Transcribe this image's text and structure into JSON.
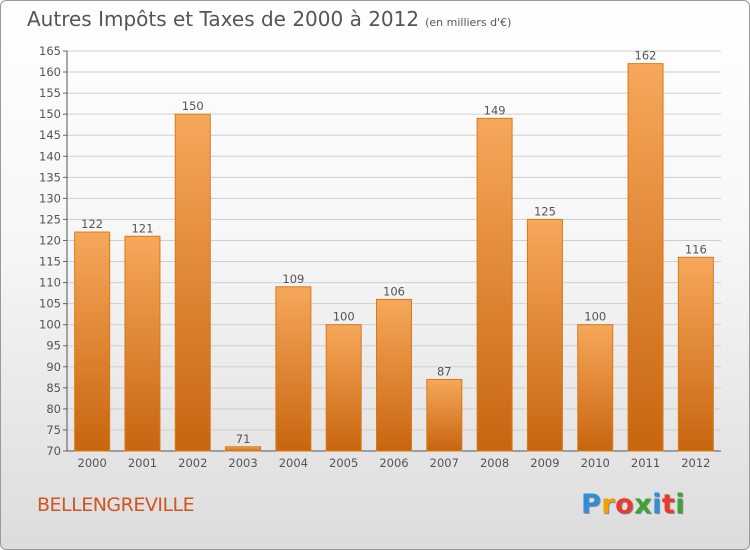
{
  "title": "Autres Impôts et Taxes de 2000 à 2012",
  "subtitle": "(en milliers d'€)",
  "commune": "BELLENGREVILLE",
  "logo": {
    "letters": [
      "P",
      "r",
      "o",
      "x",
      "i",
      "t",
      "i"
    ],
    "colors": [
      "#2e8fd6",
      "#f0a000",
      "#e83a2d",
      "#3aa534",
      "#2e8fd6",
      "#e83a2d",
      "#3aa534"
    ]
  },
  "colors": {
    "bar_top": "#f6a85a",
    "bar_bottom": "#c8650f",
    "bar_border": "#d97a1a",
    "text": "#555555",
    "commune": "#d0551f"
  },
  "chart_data": {
    "type": "bar",
    "categories": [
      "2000",
      "2001",
      "2002",
      "2003",
      "2004",
      "2005",
      "2006",
      "2007",
      "2008",
      "2009",
      "2010",
      "2011",
      "2012"
    ],
    "values": [
      122,
      121,
      150,
      71,
      109,
      100,
      106,
      87,
      149,
      125,
      100,
      162,
      116
    ],
    "ylim": [
      70,
      165
    ],
    "yticks": [
      70,
      75,
      80,
      85,
      90,
      95,
      100,
      105,
      110,
      115,
      120,
      125,
      130,
      135,
      140,
      145,
      150,
      155,
      160,
      165
    ],
    "grid": true,
    "xlabel": "",
    "ylabel": ""
  }
}
